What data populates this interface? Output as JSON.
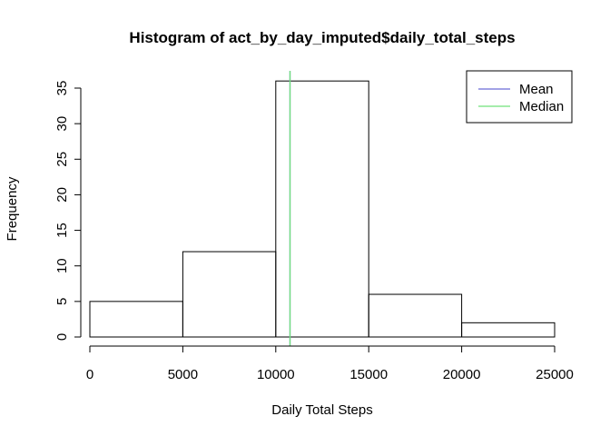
{
  "chart_data": {
    "type": "bar",
    "title": "Histogram of act_by_day_imputed$daily_total_steps",
    "xlabel": "Daily Total Steps",
    "ylabel": "Frequency",
    "bins": [
      {
        "from": 0,
        "to": 5000,
        "count": 5
      },
      {
        "from": 5000,
        "to": 10000,
        "count": 12
      },
      {
        "from": 10000,
        "to": 15000,
        "count": 36
      },
      {
        "from": 15000,
        "to": 20000,
        "count": 6
      },
      {
        "from": 20000,
        "to": 25000,
        "count": 2
      }
    ],
    "xlim": [
      0,
      25000
    ],
    "ylim": [
      0,
      36
    ],
    "x_ticks": [
      "0",
      "5000",
      "10000",
      "15000",
      "20000",
      "25000"
    ],
    "y_ticks": [
      "0",
      "5",
      "10",
      "15",
      "20",
      "25",
      "30",
      "35"
    ],
    "reference_lines": [
      {
        "name": "Mean",
        "x": 10766.19,
        "color": "#6b6bd8"
      },
      {
        "name": "Median",
        "x": 10766.19,
        "color": "#6fe27a"
      }
    ],
    "legend": {
      "position": "top-right",
      "entries": [
        {
          "label": "Mean",
          "color": "#6b6bd8"
        },
        {
          "label": "Median",
          "color": "#6fe27a"
        }
      ]
    },
    "grid": false
  }
}
